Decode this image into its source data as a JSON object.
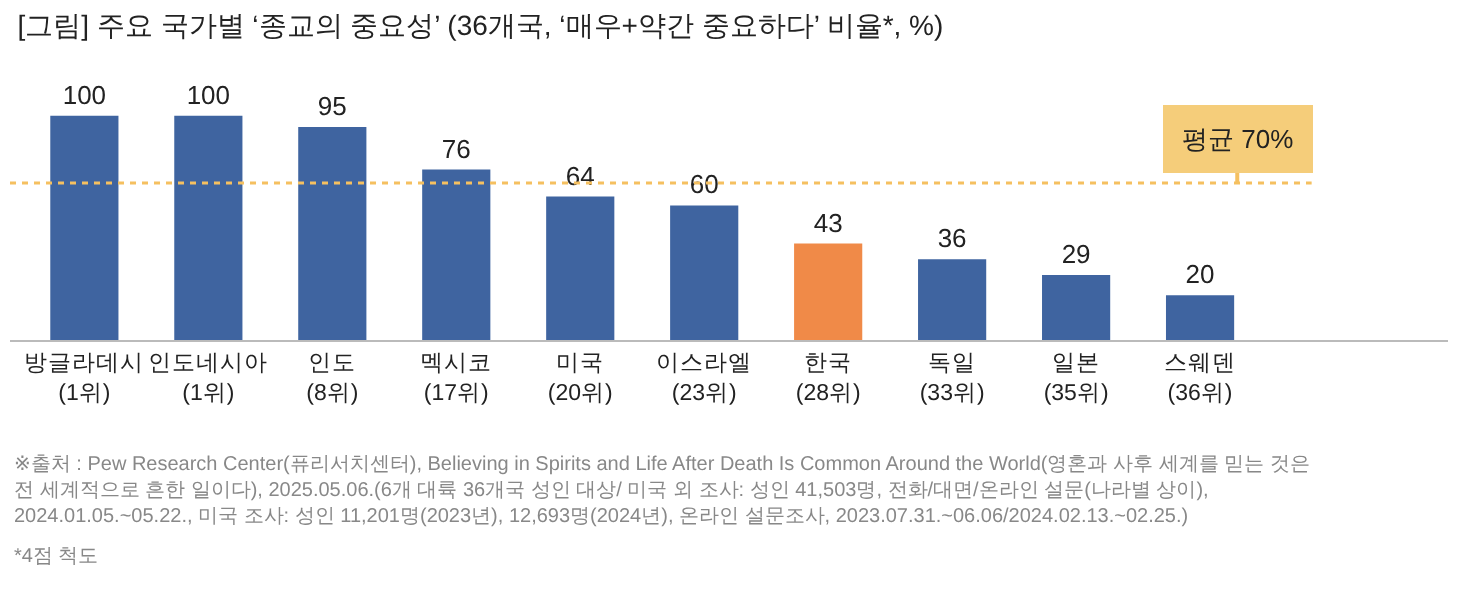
{
  "chart_data": {
    "type": "bar",
    "title": "[그림] 주요 국가별 ‘종교의 중요성’ (36개국, ‘매우+약간 중요하다’ 비율*, %)",
    "categories": [
      "방글라데시\n(1위)",
      "인도네시아\n(1위)",
      "인도\n(8위)",
      "멕시코\n(17위)",
      "미국\n(20위)",
      "이스라엘\n(23위)",
      "한국\n(28위)",
      "독일\n(33위)",
      "일본\n(35위)",
      "스웨덴\n(36위)"
    ],
    "values": [
      100,
      100,
      95,
      76,
      64,
      60,
      43,
      36,
      29,
      20
    ],
    "colors": [
      "#3f64a0",
      "#3f64a0",
      "#3f64a0",
      "#3f64a0",
      "#3f64a0",
      "#3f64a0",
      "#f08a48",
      "#3f64a0",
      "#3f64a0",
      "#3f64a0"
    ],
    "data_labels": true,
    "ref_lines": [
      {
        "axis": "y",
        "value": 70,
        "label": "평균 70%",
        "color": "#f5c060",
        "line_style": "dotted"
      }
    ],
    "annotations": [
      "※출처 : Pew Research Center(퓨리서치센터), Believing in Spirits and Life After Death Is Common Around the World(영혼과 사후 세계를 믿는 것은\n전 세계적으로 흔한 일이다), 2025.05.06.(6개 대륙 36개국 성인 대상/ 미국 외 조사: 성인 41,503명, 전화/대면/온라인 설문(나라별 상이),\n2024.01.05.~05.22., 미국 조사: 성인 11,201명(2023년), 12,693명(2024년), 온라인 설문조사, 2023.07.31.~06.06/2024.02.13.~02.25.)",
      "*4점 척도"
    ]
  }
}
